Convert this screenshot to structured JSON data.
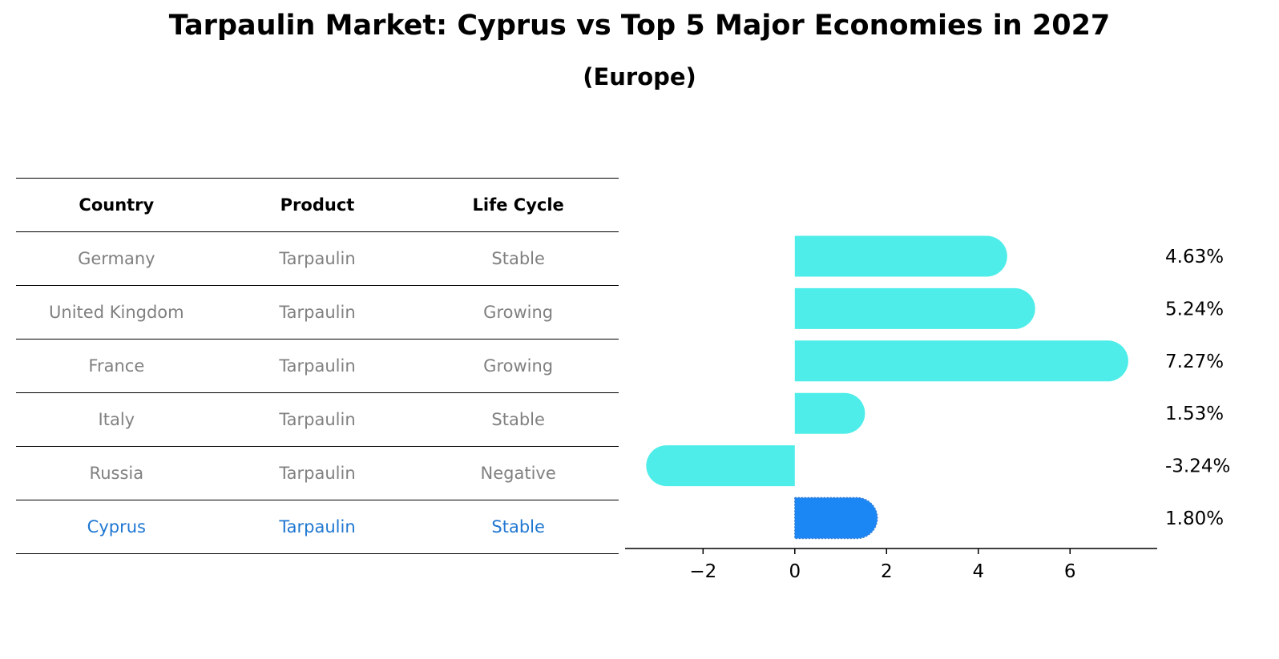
{
  "title": "Tarpaulin Market: Cyprus vs Top 5 Major Economies in 2027",
  "subtitle": "(Europe)",
  "table": {
    "headers": [
      "Country",
      "Product",
      "Life Cycle"
    ],
    "rows": [
      {
        "country": "Germany",
        "product": "Tarpaulin",
        "life_cycle": "Stable",
        "highlight": false
      },
      {
        "country": "United Kingdom",
        "product": "Tarpaulin",
        "life_cycle": "Growing",
        "highlight": false
      },
      {
        "country": "France",
        "product": "Tarpaulin",
        "life_cycle": "Growing",
        "highlight": false
      },
      {
        "country": "Italy",
        "product": "Tarpaulin",
        "life_cycle": "Stable",
        "highlight": false
      },
      {
        "country": "Russia",
        "product": "Tarpaulin",
        "life_cycle": "Negative",
        "highlight": false
      },
      {
        "country": "Cyprus",
        "product": "Tarpaulin",
        "life_cycle": "Stable",
        "highlight": true
      }
    ]
  },
  "chart_data": {
    "type": "bar",
    "orientation": "horizontal",
    "categories": [
      "Germany",
      "United Kingdom",
      "France",
      "Italy",
      "Russia",
      "Cyprus"
    ],
    "values": [
      4.63,
      5.24,
      7.27,
      1.53,
      -3.24,
      1.8
    ],
    "value_labels": [
      "4.63%",
      "5.24%",
      "7.27%",
      "1.53%",
      "-3.24%",
      "1.80%"
    ],
    "xlim": [
      -3.7,
      7.9
    ],
    "xticks": [
      -2,
      0,
      2,
      4,
      6
    ],
    "xtick_labels": [
      "−2",
      "0",
      "2",
      "4",
      "6"
    ],
    "grid": false,
    "colors": {
      "default": "#4eede9",
      "highlight": "#1a87f5"
    },
    "highlight_index": 5
  }
}
